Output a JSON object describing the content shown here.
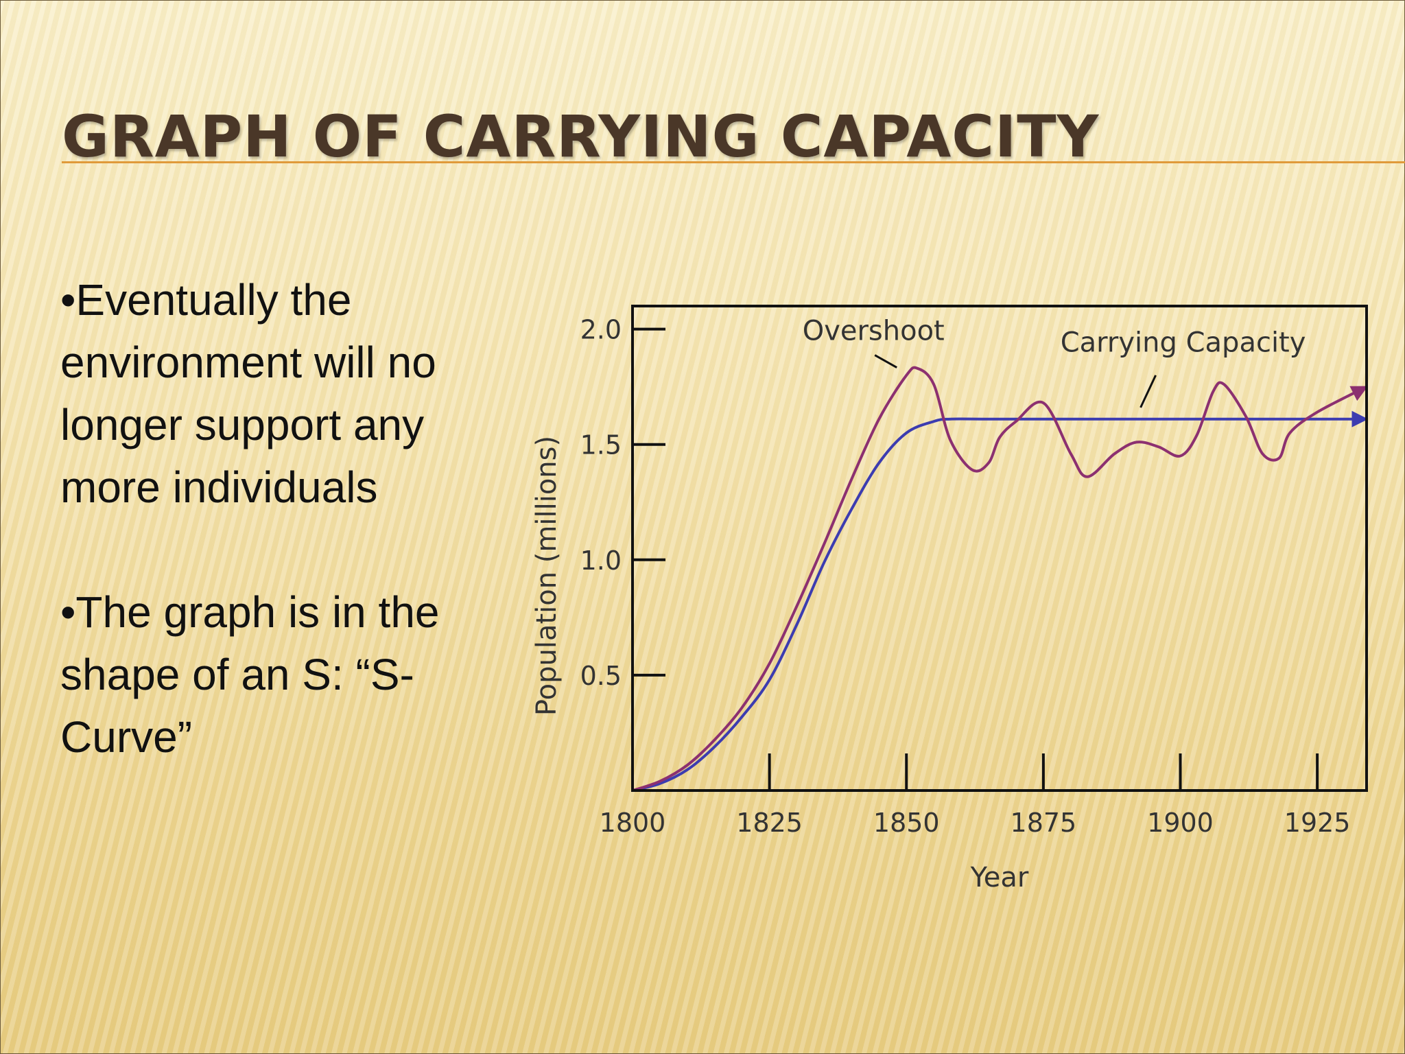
{
  "slide": {
    "title": "GRAPH OF CARRYING CAPACITY",
    "bullets": [
      "•Eventually the environment will no longer support any more individuals",
      "•The graph is in the shape of an S: “S-Curve”"
    ]
  },
  "chart_data": {
    "type": "line",
    "title": "",
    "xlabel": "Year",
    "ylabel": "Population (millions)",
    "xlim": [
      1800,
      1934
    ],
    "ylim": [
      0,
      2.1
    ],
    "xticks": [
      1800,
      1825,
      1850,
      1875,
      1900,
      1925
    ],
    "yticks": [
      0.5,
      1.0,
      1.5,
      2.0
    ],
    "tick_labels_x": [
      "1800",
      "1825",
      "1850",
      "1875",
      "1900",
      "1925"
    ],
    "tick_labels_y": [
      "0.5",
      "1.0",
      "1.5",
      "2.0"
    ],
    "grid": false,
    "series": [
      {
        "name": "Carrying Capacity",
        "color": "#3c3cb0",
        "arrow": true,
        "x": [
          1800,
          1805,
          1810,
          1815,
          1820,
          1825,
          1830,
          1835,
          1840,
          1845,
          1850,
          1855,
          1858,
          1865,
          1875,
          1885,
          1895,
          1905,
          1915,
          1925,
          1934
        ],
        "y": [
          0.0,
          0.03,
          0.09,
          0.19,
          0.32,
          0.48,
          0.72,
          0.99,
          1.22,
          1.42,
          1.55,
          1.6,
          1.61,
          1.61,
          1.61,
          1.61,
          1.61,
          1.61,
          1.61,
          1.61,
          1.61
        ]
      },
      {
        "name": "Overshoot",
        "color": "#8c3070",
        "arrow": true,
        "x": [
          1800,
          1805,
          1810,
          1815,
          1820,
          1825,
          1830,
          1835,
          1840,
          1845,
          1850,
          1852,
          1855,
          1858,
          1862,
          1865,
          1867,
          1870,
          1875,
          1880,
          1883,
          1888,
          1892,
          1896,
          1900,
          1903,
          1906,
          1908,
          1912,
          1915,
          1918,
          1920,
          1925,
          1934
        ],
        "y": [
          0.0,
          0.04,
          0.11,
          0.22,
          0.36,
          0.55,
          0.8,
          1.07,
          1.35,
          1.61,
          1.8,
          1.83,
          1.76,
          1.52,
          1.39,
          1.42,
          1.53,
          1.6,
          1.68,
          1.46,
          1.36,
          1.46,
          1.51,
          1.49,
          1.45,
          1.54,
          1.73,
          1.76,
          1.62,
          1.46,
          1.44,
          1.55,
          1.64,
          1.75
        ]
      }
    ],
    "annotations": [
      {
        "text": "Overshoot",
        "target_x": 1852,
        "target_y": 1.83
      },
      {
        "text": "Carrying Capacity",
        "target_x": 1895,
        "target_y": 1.61
      }
    ]
  }
}
